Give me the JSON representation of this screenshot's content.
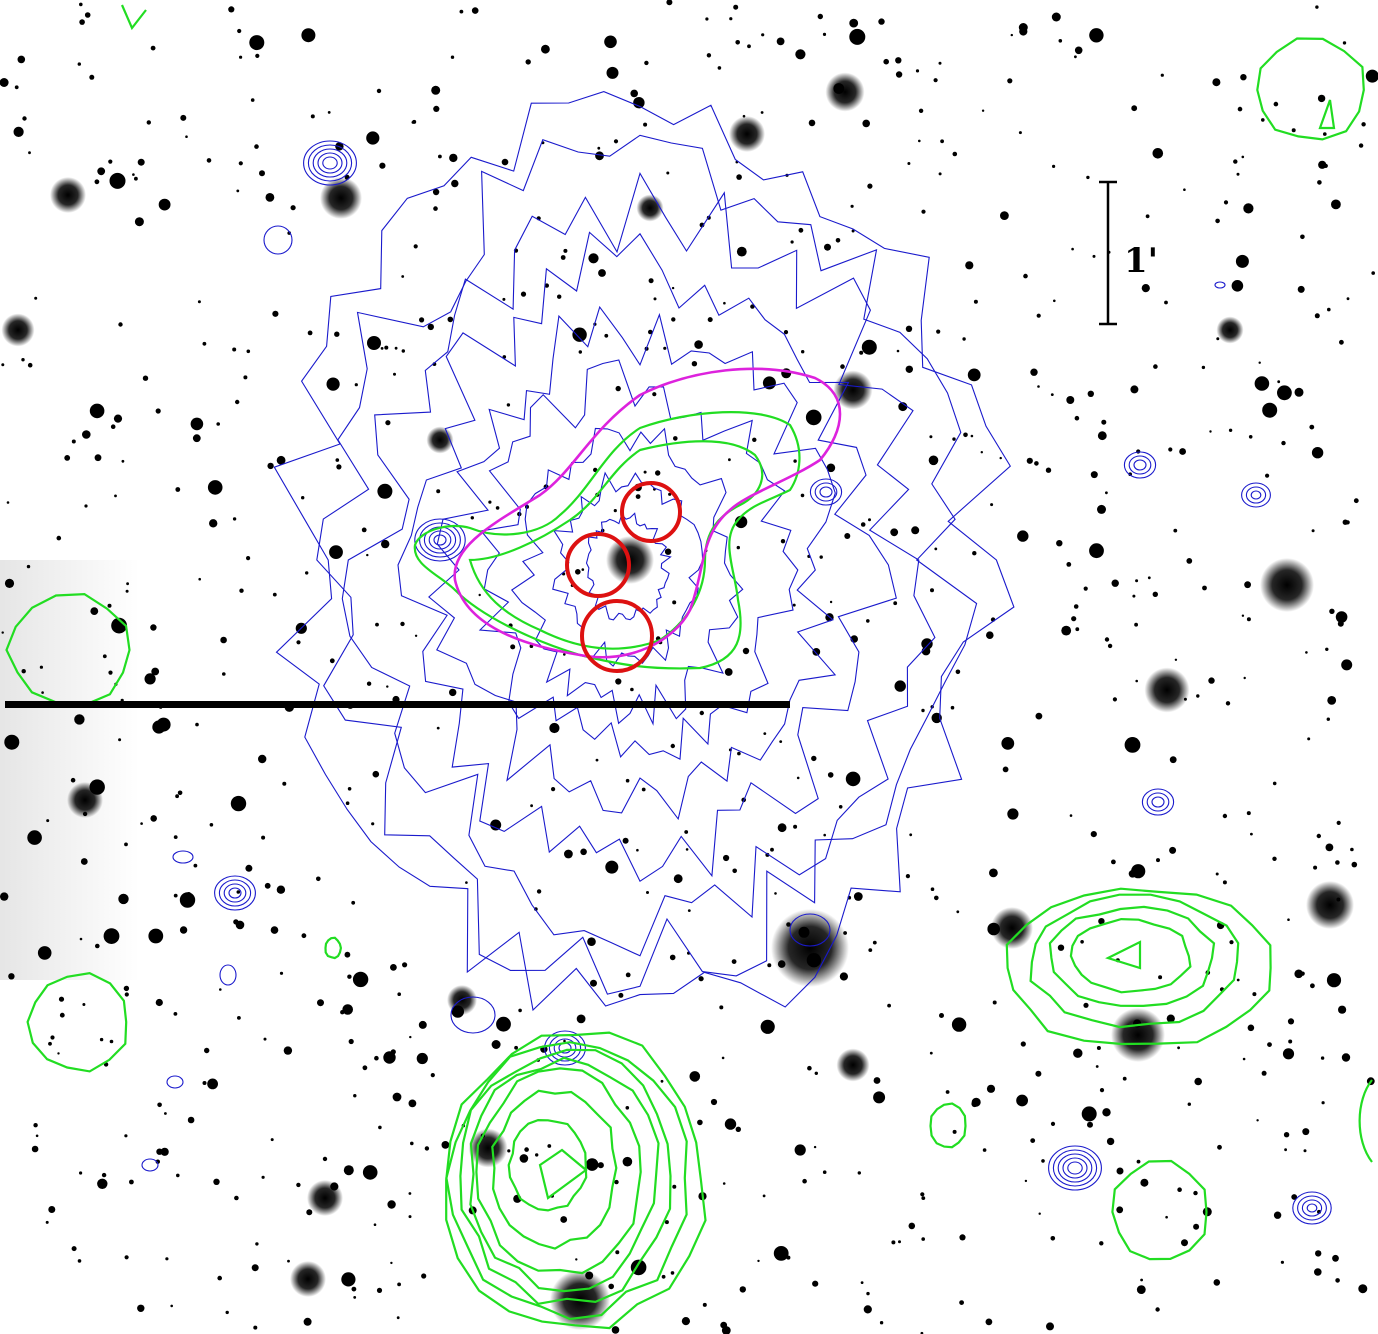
{
  "figure": {
    "scale_bar": {
      "label": "1'"
    },
    "colors": {
      "background": "#ffffff",
      "stars": "#000000",
      "xray_contours": "#1a1acc",
      "radio_contours": "#22dd22",
      "magenta_contour": "#dd22dd",
      "red_circles": "#dd1111"
    }
  }
}
